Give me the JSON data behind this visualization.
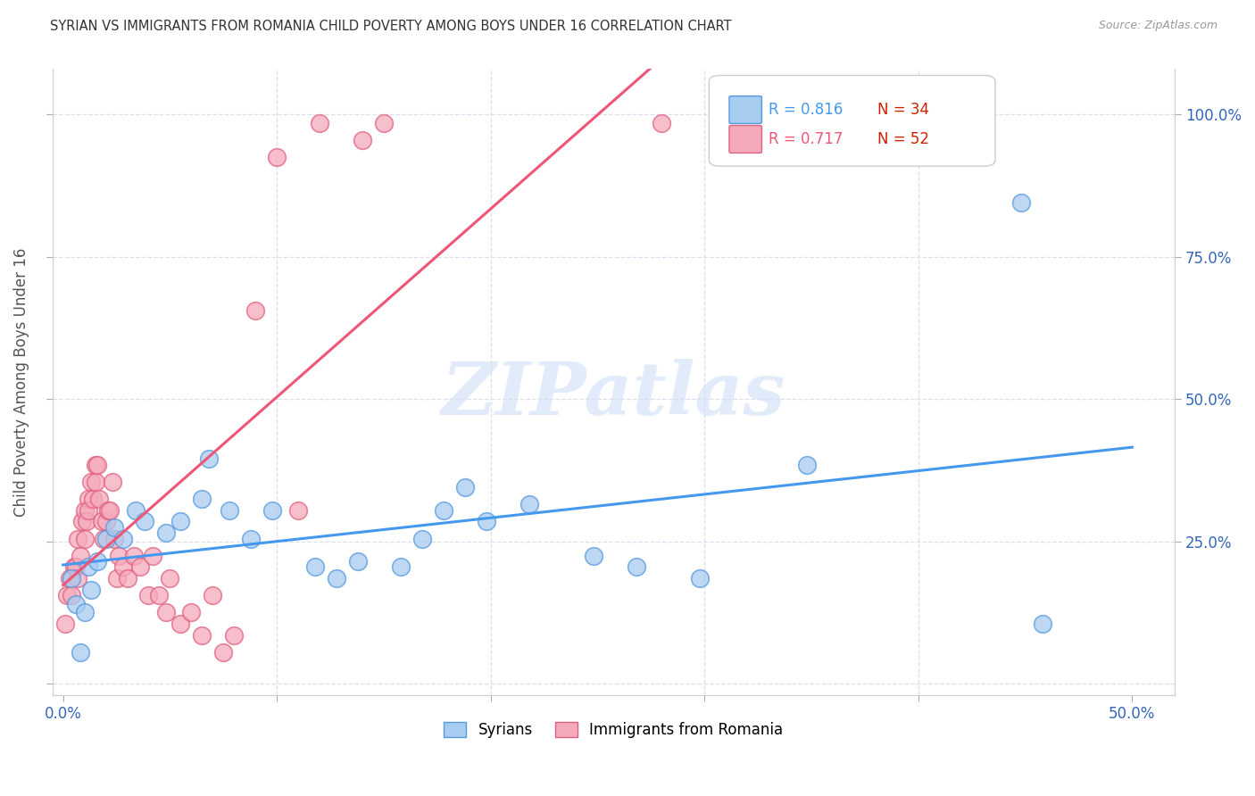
{
  "title": "SYRIAN VS IMMIGRANTS FROM ROMANIA CHILD POVERTY AMONG BOYS UNDER 16 CORRELATION CHART",
  "source": "Source: ZipAtlas.com",
  "ylabel": "Child Poverty Among Boys Under 16",
  "xlim": [
    -0.005,
    0.52
  ],
  "ylim": [
    -0.02,
    1.08
  ],
  "blue_R": 0.816,
  "blue_N": 34,
  "pink_R": 0.717,
  "pink_N": 52,
  "blue_color": "#A8CCF0",
  "pink_color": "#F5AABB",
  "blue_edge_color": "#5599DD",
  "pink_edge_color": "#E06080",
  "blue_line_color": "#4499EE",
  "pink_line_color": "#EE5577",
  "watermark": "ZIPatlas",
  "watermark_color": "#D0DFF5",
  "grid_color": "#DDDDEE",
  "background_color": "#FFFFFF",
  "blue_x": [
    0.004,
    0.006,
    0.008,
    0.01,
    0.012,
    0.013,
    0.016,
    0.02,
    0.024,
    0.028,
    0.034,
    0.038,
    0.048,
    0.055,
    0.065,
    0.068,
    0.078,
    0.088,
    0.098,
    0.118,
    0.128,
    0.138,
    0.158,
    0.168,
    0.178,
    0.188,
    0.198,
    0.218,
    0.248,
    0.268,
    0.298,
    0.348,
    0.448,
    0.458
  ],
  "blue_y": [
    0.185,
    0.14,
    0.055,
    0.125,
    0.205,
    0.165,
    0.215,
    0.255,
    0.275,
    0.255,
    0.305,
    0.285,
    0.265,
    0.285,
    0.325,
    0.395,
    0.305,
    0.255,
    0.305,
    0.205,
    0.185,
    0.215,
    0.205,
    0.255,
    0.305,
    0.345,
    0.285,
    0.315,
    0.225,
    0.205,
    0.185,
    0.385,
    0.845,
    0.105
  ],
  "pink_x": [
    0.001,
    0.002,
    0.003,
    0.004,
    0.005,
    0.006,
    0.007,
    0.007,
    0.008,
    0.009,
    0.01,
    0.01,
    0.011,
    0.012,
    0.012,
    0.013,
    0.014,
    0.015,
    0.015,
    0.016,
    0.017,
    0.018,
    0.019,
    0.02,
    0.021,
    0.022,
    0.023,
    0.024,
    0.025,
    0.026,
    0.028,
    0.03,
    0.033,
    0.036,
    0.04,
    0.042,
    0.045,
    0.048,
    0.05,
    0.055,
    0.06,
    0.065,
    0.07,
    0.075,
    0.08,
    0.09,
    0.1,
    0.11,
    0.12,
    0.14,
    0.15,
    0.28
  ],
  "pink_y": [
    0.105,
    0.155,
    0.185,
    0.155,
    0.205,
    0.205,
    0.185,
    0.255,
    0.225,
    0.285,
    0.255,
    0.305,
    0.285,
    0.325,
    0.305,
    0.355,
    0.325,
    0.385,
    0.355,
    0.385,
    0.325,
    0.285,
    0.255,
    0.285,
    0.305,
    0.305,
    0.355,
    0.255,
    0.185,
    0.225,
    0.205,
    0.185,
    0.225,
    0.205,
    0.155,
    0.225,
    0.155,
    0.125,
    0.185,
    0.105,
    0.125,
    0.085,
    0.155,
    0.055,
    0.085,
    0.655,
    0.925,
    0.305,
    0.985,
    0.955,
    0.985,
    0.985
  ]
}
